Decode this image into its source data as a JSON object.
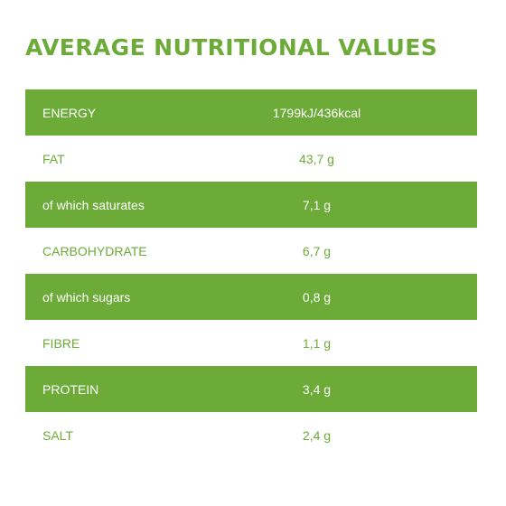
{
  "title": "AVERAGE NUTRITIONAL VALUES",
  "colors": {
    "accent": "#6cab38",
    "background": "#ffffff",
    "shaded_text": "#ffffff"
  },
  "rows": [
    {
      "label": "ENERGY",
      "value": "1799kJ/436kcal"
    },
    {
      "label": "FAT",
      "value": "43,7 g"
    },
    {
      "label": "of which saturates",
      "value": "7,1 g"
    },
    {
      "label": "CARBOHYDRATE",
      "value": "6,7 g"
    },
    {
      "label": "of which sugars",
      "value": "0,8 g"
    },
    {
      "label": "FIBRE",
      "value": "1,1 g"
    },
    {
      "label": "PROTEIN",
      "value": "3,4 g"
    },
    {
      "label": "SALT",
      "value": "2,4 g"
    }
  ]
}
